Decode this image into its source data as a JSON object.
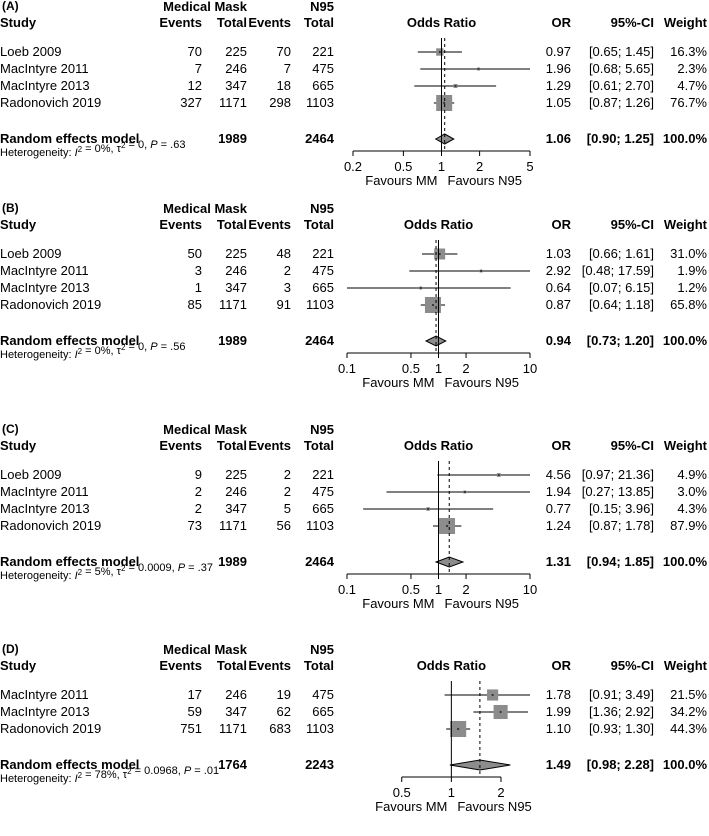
{
  "chart_data": [
    {
      "type": "forest",
      "panel": "(A)",
      "group_header_left": "Medical Mask",
      "group_header_right": "N95",
      "columns": {
        "study": "Study",
        "events_mm": "Events",
        "total_mm": "Total",
        "events_n95": "Events",
        "total_n95": "Total",
        "plot": "Odds Ratio",
        "or": "OR",
        "ci": "95%-CI",
        "weight": "Weight"
      },
      "studies": [
        {
          "name": "Loeb 2009",
          "events_mm": "70",
          "total_mm": "225",
          "events_n95": "70",
          "total_n95": "221",
          "or": 0.97,
          "lo": 0.65,
          "hi": 1.45,
          "or_text": "0.97",
          "ci_text": "[0.65; 1.45]",
          "weight_text": "16.3%",
          "weight": 16.3
        },
        {
          "name": "MacIntyre 2011",
          "events_mm": "7",
          "total_mm": "246",
          "events_n95": "7",
          "total_n95": "475",
          "or": 1.96,
          "lo": 0.68,
          "hi": 5.65,
          "or_text": "1.96",
          "ci_text": "[0.68; 5.65]",
          "weight_text": "2.3%",
          "weight": 2.3
        },
        {
          "name": "MacIntyre 2013",
          "events_mm": "12",
          "total_mm": "347",
          "events_n95": "18",
          "total_n95": "665",
          "or": 1.29,
          "lo": 0.61,
          "hi": 2.7,
          "or_text": "1.29",
          "ci_text": "[0.61; 2.70]",
          "weight_text": "4.7%",
          "weight": 4.7
        },
        {
          "name": "Radonovich 2019",
          "events_mm": "327",
          "total_mm": "1171",
          "events_n95": "298",
          "total_n95": "1103",
          "or": 1.05,
          "lo": 0.87,
          "hi": 1.26,
          "or_text": "1.05",
          "ci_text": "[0.87; 1.26]",
          "weight_text": "76.7%",
          "weight": 76.7
        }
      ],
      "pooled": {
        "label": "Random effects model",
        "total_mm": "1989",
        "total_n95": "2464",
        "or": 1.06,
        "lo": 0.9,
        "hi": 1.25,
        "or_text": "1.06",
        "ci_text": "[0.90; 1.25]",
        "weight_text": "100.0%"
      },
      "heterogeneity": {
        "prefix": "Heterogeneity: ",
        "i2_symbol": "I",
        "i2_value": " = 0%, ",
        "tau2_symbol": "τ",
        "tau2_value": " = 0, ",
        "p_symbol": "P",
        "p_value": " = .63"
      },
      "axis": {
        "min": 0.2,
        "max": 5,
        "ticks": [
          0.2,
          0.5,
          1,
          2,
          5
        ],
        "tick_labels": [
          "0.2",
          "0.5",
          "1",
          "2",
          "5"
        ],
        "scale": "log"
      },
      "favours_left": "Favours MM",
      "favours_right": "Favours N95"
    },
    {
      "type": "forest",
      "panel": "(B)",
      "group_header_left": "Medical Mask",
      "group_header_right": "N95",
      "columns": {
        "study": "Study",
        "events_mm": "Events",
        "total_mm": "Total",
        "events_n95": "Events",
        "total_n95": "Total",
        "plot": "Odds Ratio",
        "or": "OR",
        "ci": "95%-CI",
        "weight": "Weight"
      },
      "studies": [
        {
          "name": "Loeb 2009",
          "events_mm": "50",
          "total_mm": "225",
          "events_n95": "48",
          "total_n95": "221",
          "or": 1.03,
          "lo": 0.66,
          "hi": 1.61,
          "or_text": "1.03",
          "ci_text": "[0.66;  1.61]",
          "weight_text": "31.0%",
          "weight": 31.0
        },
        {
          "name": "MacIntyre 2011",
          "events_mm": "3",
          "total_mm": "246",
          "events_n95": "2",
          "total_n95": "475",
          "or": 2.92,
          "lo": 0.48,
          "hi": 17.59,
          "or_text": "2.92",
          "ci_text": "[0.48; 17.59]",
          "weight_text": "1.9%",
          "weight": 1.9
        },
        {
          "name": "MacIntyre 2013",
          "events_mm": "1",
          "total_mm": "347",
          "events_n95": "3",
          "total_n95": "665",
          "or": 0.64,
          "lo": 0.07,
          "hi": 6.15,
          "or_text": "0.64",
          "ci_text": "[0.07;  6.15]",
          "weight_text": "1.2%",
          "weight": 1.2
        },
        {
          "name": "Radonovich 2019",
          "events_mm": "85",
          "total_mm": "1171",
          "events_n95": "91",
          "total_n95": "1103",
          "or": 0.87,
          "lo": 0.64,
          "hi": 1.18,
          "or_text": "0.87",
          "ci_text": "[0.64;  1.18]",
          "weight_text": "65.8%",
          "weight": 65.8
        }
      ],
      "pooled": {
        "label": "Random effects model",
        "total_mm": "1989",
        "total_n95": "2464",
        "or": 0.94,
        "lo": 0.73,
        "hi": 1.2,
        "or_text": "0.94",
        "ci_text": "[0.73;  1.20]",
        "weight_text": "100.0%"
      },
      "heterogeneity": {
        "prefix": "Heterogeneity: ",
        "i2_symbol": "I",
        "i2_value": " = 0%, ",
        "tau2_symbol": "τ",
        "tau2_value": " = 0, ",
        "p_symbol": "P",
        "p_value": " = .56"
      },
      "axis": {
        "min": 0.1,
        "max": 10,
        "ticks": [
          0.1,
          0.5,
          1,
          2,
          10
        ],
        "tick_labels": [
          "0.1",
          "0.5",
          "1",
          "2",
          "10"
        ],
        "scale": "log"
      },
      "favours_left": "Favours MM",
      "favours_right": "Favours N95"
    },
    {
      "type": "forest",
      "panel": "(C)",
      "group_header_left": "Medical Mask",
      "group_header_right": "N95",
      "columns": {
        "study": "Study",
        "events_mm": "Events",
        "total_mm": "Total",
        "events_n95": "Events",
        "total_n95": "Total",
        "plot": "Odds Ratio",
        "or": "OR",
        "ci": "95%-CI",
        "weight": "Weight"
      },
      "studies": [
        {
          "name": "Loeb 2009",
          "events_mm": "9",
          "total_mm": "225",
          "events_n95": "2",
          "total_n95": "221",
          "or": 4.56,
          "lo": 0.97,
          "hi": 21.36,
          "or_text": "4.56",
          "ci_text": "[0.97; 21.36]",
          "weight_text": "4.9%",
          "weight": 4.9
        },
        {
          "name": "MacIntyre 2011",
          "events_mm": "2",
          "total_mm": "246",
          "events_n95": "2",
          "total_n95": "475",
          "or": 1.94,
          "lo": 0.27,
          "hi": 13.85,
          "or_text": "1.94",
          "ci_text": "[0.27; 13.85]",
          "weight_text": "3.0%",
          "weight": 3.0
        },
        {
          "name": "MacIntyre 2013",
          "events_mm": "2",
          "total_mm": "347",
          "events_n95": "5",
          "total_n95": "665",
          "or": 0.77,
          "lo": 0.15,
          "hi": 3.96,
          "or_text": "0.77",
          "ci_text": "[0.15;  3.96]",
          "weight_text": "4.3%",
          "weight": 4.3
        },
        {
          "name": "Radonovich 2019",
          "events_mm": "73",
          "total_mm": "1171",
          "events_n95": "56",
          "total_n95": "1103",
          "or": 1.24,
          "lo": 0.87,
          "hi": 1.78,
          "or_text": "1.24",
          "ci_text": "[0.87;  1.78]",
          "weight_text": "87.9%",
          "weight": 87.9
        }
      ],
      "pooled": {
        "label": "Random effects model",
        "total_mm": "1989",
        "total_n95": "2464",
        "or": 1.31,
        "lo": 0.94,
        "hi": 1.85,
        "or_text": "1.31",
        "ci_text": "[0.94;  1.85]",
        "weight_text": "100.0%"
      },
      "heterogeneity": {
        "prefix": "Heterogeneity: ",
        "i2_symbol": "I",
        "i2_value": " = 5%, ",
        "tau2_symbol": "τ",
        "tau2_value": " = 0.0009, ",
        "p_symbol": "P",
        "p_value": " = .37"
      },
      "axis": {
        "min": 0.1,
        "max": 10,
        "ticks": [
          0.1,
          0.5,
          1,
          2,
          10
        ],
        "tick_labels": [
          "0.1",
          "0.5",
          "1",
          "2",
          "10"
        ],
        "scale": "log"
      },
      "favours_left": "Favours MM",
      "favours_right": "Favours N95"
    },
    {
      "type": "forest",
      "panel": "(D)",
      "group_header_left": "Medical Mask",
      "group_header_right": "N95",
      "columns": {
        "study": "Study",
        "events_mm": "Events",
        "total_mm": "Total",
        "events_n95": "Events",
        "total_n95": "Total",
        "plot": "Odds Ratio",
        "or": "OR",
        "ci": "95%-CI",
        "weight": "Weight"
      },
      "studies": [
        {
          "name": "MacIntyre 2011",
          "events_mm": "17",
          "total_mm": "246",
          "events_n95": "19",
          "total_n95": "475",
          "or": 1.78,
          "lo": 0.91,
          "hi": 3.49,
          "or_text": "1.78",
          "ci_text": "[0.91; 3.49]",
          "weight_text": "21.5%",
          "weight": 21.5
        },
        {
          "name": "MacIntyre 2013",
          "events_mm": "59",
          "total_mm": "347",
          "events_n95": "62",
          "total_n95": "665",
          "or": 1.99,
          "lo": 1.36,
          "hi": 2.92,
          "or_text": "1.99",
          "ci_text": "[1.36; 2.92]",
          "weight_text": "34.2%",
          "weight": 34.2
        },
        {
          "name": "Radonovich 2019",
          "events_mm": "751",
          "total_mm": "1171",
          "events_n95": "683",
          "total_n95": "1103",
          "or": 1.1,
          "lo": 0.93,
          "hi": 1.3,
          "or_text": "1.10",
          "ci_text": "[0.93; 1.30]",
          "weight_text": "44.3%",
          "weight": 44.3
        }
      ],
      "pooled": {
        "label": "Random effects model",
        "total_mm": "1764",
        "total_n95": "2243",
        "or": 1.49,
        "lo": 0.98,
        "hi": 2.28,
        "or_text": "1.49",
        "ci_text": "[0.98; 2.28]",
        "weight_text": "100.0%"
      },
      "heterogeneity": {
        "prefix": "Heterogeneity: ",
        "i2_symbol": "I",
        "i2_value": " = 78%, ",
        "tau2_symbol": "τ",
        "tau2_value": " = 0.0968, ",
        "p_symbol": "P",
        "p_value": " = .01"
      },
      "axis": {
        "min": 0.33,
        "max": 3,
        "ticks": [
          0.5,
          1,
          2
        ],
        "tick_labels": [
          "0.5",
          "1",
          "2"
        ],
        "scale": "log"
      },
      "favours_left": "Favours MM",
      "favours_right": "Favours N95"
    }
  ]
}
